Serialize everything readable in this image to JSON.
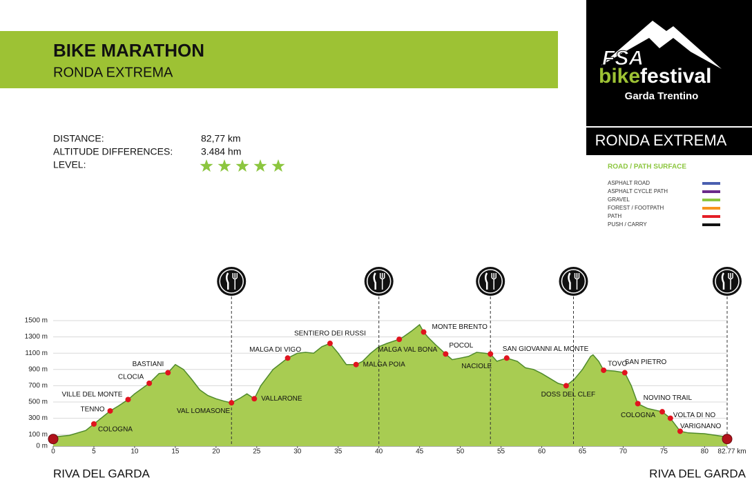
{
  "header": {
    "title": "BIKE MARATHON",
    "subtitle": "RONDA EXTREMA"
  },
  "stats": [
    {
      "label": "DISTANCE:",
      "value": "82,77 km"
    },
    {
      "label": "ALTITUDE DIFFERENCES:",
      "value": "3.484 hm"
    },
    {
      "label": "LEVEL:",
      "stars": 5
    }
  ],
  "logo": {
    "brand": "FSA",
    "word1": "bike",
    "word2": "festival",
    "place": "Garda Trentino",
    "route": "RONDA EXTREMA"
  },
  "legend": {
    "title": "ROAD / PATH SURFACE",
    "items": [
      {
        "name": "ASPHALT ROAD",
        "color": "#4a5fb0"
      },
      {
        "name": "ASPHALT CYCLE PATH",
        "color": "#6a2a8a"
      },
      {
        "name": "GRAVEL",
        "color": "#8cc63f"
      },
      {
        "name": "FOREST / FOOTPATH",
        "color": "#f7941d"
      },
      {
        "name": "PATH",
        "color": "#e41e26"
      },
      {
        "name": "PUSH / CARRY",
        "color": "#111111"
      }
    ]
  },
  "start_label": "RIVA DEL GARDA",
  "end_label": "RIVA DEL GARDA",
  "chart_data": {
    "type": "area",
    "fill": "#a8cc52",
    "line_color": "#4f8a2b",
    "xlim": [
      0,
      82.77
    ],
    "ylim": [
      0,
      1500
    ],
    "xticks": [
      0,
      5,
      10,
      15,
      20,
      25,
      30,
      35,
      40,
      45,
      50,
      55,
      60,
      65,
      70,
      75,
      80,
      {
        "value": 82.77,
        "label": "82.77 km"
      }
    ],
    "yticks": [
      {
        "value": 0,
        "label": "0 m"
      },
      {
        "value": 100,
        "label": "100 m"
      },
      {
        "value": 300,
        "label": "300 m"
      },
      {
        "value": 500,
        "label": "500 m"
      },
      {
        "value": 700,
        "label": "700 m"
      },
      {
        "value": 900,
        "label": "900 m"
      },
      {
        "value": 1100,
        "label": "1100 m"
      },
      {
        "value": 1300,
        "label": "1300 m"
      },
      {
        "value": 1500,
        "label": "1500 m"
      }
    ],
    "grid": true,
    "x": [
      0,
      2,
      4,
      5,
      7,
      8,
      9.2,
      10,
      11.8,
      13,
      14.1,
      15,
      16,
      17,
      18,
      19,
      20,
      21,
      21.9,
      23,
      23.8,
      24.7,
      25.5,
      27,
      28.8,
      30,
      31,
      32,
      33,
      34,
      35,
      36,
      37.2,
      38,
      39,
      40,
      41,
      42.5,
      43,
      44,
      45,
      45.5,
      46,
      47,
      48.2,
      49,
      50,
      51,
      52,
      53,
      53.7,
      54.5,
      55.7,
      57,
      58,
      59,
      60,
      61,
      62,
      63,
      64,
      65,
      66,
      66.3,
      67,
      67.6,
      69,
      70.2,
      71,
      71.8,
      73,
      74.8,
      75.8,
      77,
      78,
      80,
      82.77
    ],
    "y": [
      70,
      90,
      150,
      230,
      390,
      450,
      530,
      600,
      730,
      850,
      860,
      960,
      900,
      780,
      650,
      580,
      540,
      510,
      490,
      550,
      600,
      540,
      700,
      900,
      1040,
      1100,
      1110,
      1100,
      1180,
      1220,
      1100,
      960,
      960,
      1000,
      1100,
      1180,
      1220,
      1270,
      1300,
      1370,
      1450,
      1360,
      1300,
      1200,
      1090,
      1020,
      1040,
      1060,
      1110,
      1100,
      1090,
      1000,
      1040,
      1000,
      920,
      900,
      850,
      790,
      730,
      700,
      780,
      900,
      1060,
      1080,
      1000,
      890,
      880,
      860,
      700,
      480,
      420,
      380,
      300,
      140,
      120,
      110,
      70
    ],
    "waypoints": [
      {
        "name": "COLOGNA",
        "km": 5,
        "elevation": 230
      },
      {
        "name": "TENNO",
        "km": 7,
        "elevation": 390
      },
      {
        "name": "VILLE DEL MONTE",
        "km": 9.2,
        "elevation": 530
      },
      {
        "name": "CLOCIA",
        "km": 11.8,
        "elevation": 730
      },
      {
        "name": "BASTIANI",
        "km": 14.1,
        "elevation": 860
      },
      {
        "name": "VAL LOMASONE",
        "km": 21.9,
        "elevation": 490
      },
      {
        "name": "VALLARONE",
        "km": 24.7,
        "elevation": 540
      },
      {
        "name": "MALGA DI VIGO",
        "km": 28.8,
        "elevation": 1040
      },
      {
        "name": "SENTIERO DEI RUSSI",
        "km": 34,
        "elevation": 1220
      },
      {
        "name": "MALGA POIA",
        "km": 37.2,
        "elevation": 960
      },
      {
        "name": "MALGA VAL BONA",
        "km": 42.5,
        "elevation": 1270
      },
      {
        "name": "MONTE BRENTO",
        "km": 45.5,
        "elevation": 1360
      },
      {
        "name": "POCOL",
        "km": 48.2,
        "elevation": 1090
      },
      {
        "name": "NACIOLE",
        "km": 53.7,
        "elevation": 1090
      },
      {
        "name": "SAN GIOVANNI AL MONTE",
        "km": 55.7,
        "elevation": 1040
      },
      {
        "name": "DOSS DEL CLEF",
        "km": 63,
        "elevation": 700
      },
      {
        "name": "TOVO",
        "km": 67.6,
        "elevation": 890
      },
      {
        "name": "SAN PIETRO",
        "km": 70.2,
        "elevation": 860
      },
      {
        "name": "NOVINO TRAIL",
        "km": 71.8,
        "elevation": 480
      },
      {
        "name": "COLOGNA",
        "km": 74.8,
        "elevation": 380
      },
      {
        "name": "VOLTA DI NO",
        "km": 75.8,
        "elevation": 300
      },
      {
        "name": "VARIGNANO",
        "km": 77,
        "elevation": 140
      }
    ],
    "food_stations": [
      21.9,
      40,
      53.7,
      63.9,
      82.77
    ]
  }
}
